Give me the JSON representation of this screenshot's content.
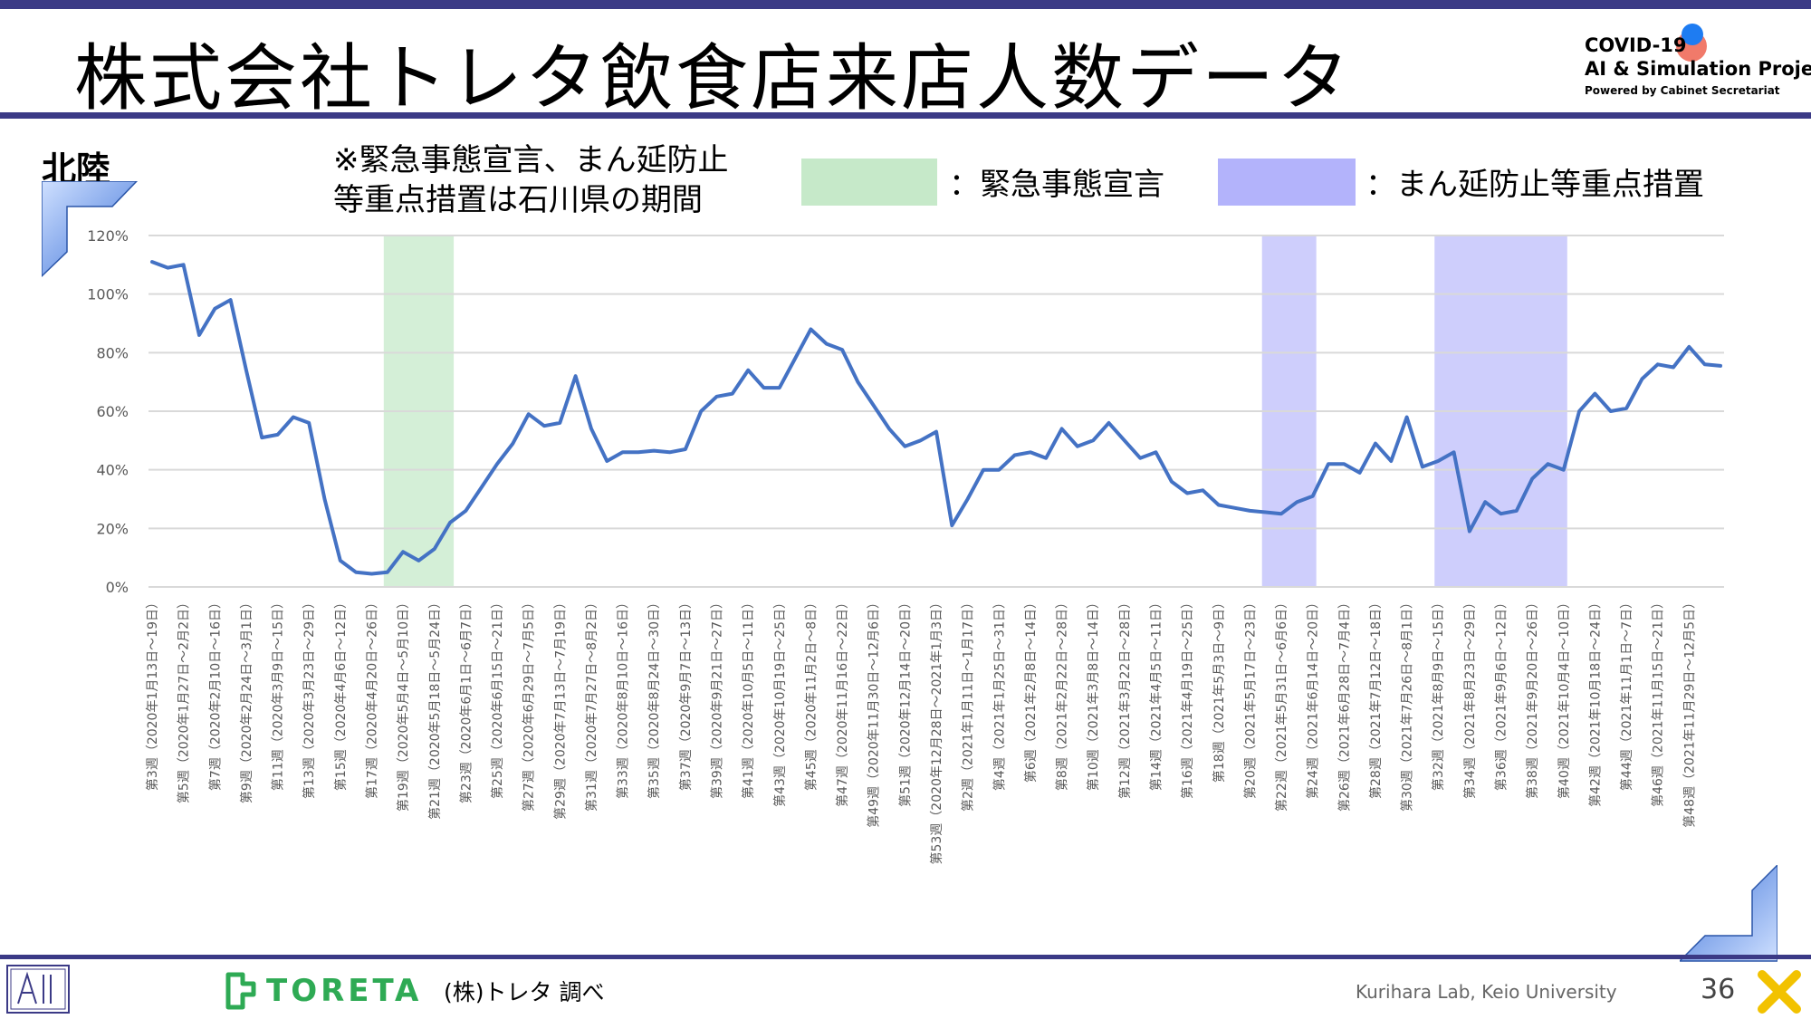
{
  "header": {
    "title": "株式会社トレタ飲食店来店人数データ",
    "logo_line1": "COVID-19",
    "logo_line2": "AI & Simulation Project",
    "logo_line3": "Powered by Cabinet Secretariat"
  },
  "region_label": "北陸",
  "note_lines": [
    "※緊急事態宣言、まん延防止",
    "等重点措置は石川県の期間"
  ],
  "legend": [
    {
      "label": "：緊急事態宣言",
      "color": "#c6e9c9"
    },
    {
      "label": "：まん延防止等重点措置",
      "color": "#b3b3fb"
    }
  ],
  "footer": {
    "brand": "TORETA",
    "source": "(株)トレタ 調べ",
    "lab": "Kurihara Lab, Keio University",
    "page": "36"
  },
  "colors": {
    "accent": "#3b3a86",
    "line": "#4472c4",
    "grid": "#d9d9d9",
    "brand_green": "#2eaa54"
  },
  "chart_data": {
    "type": "line",
    "title": "",
    "xlabel": "",
    "ylabel": "",
    "ylim": [
      0,
      120
    ],
    "yticks": [
      "0%",
      "20%",
      "40%",
      "60%",
      "80%",
      "100%",
      "120%"
    ],
    "grid": true,
    "x_labels": [
      "第3週（2020年1月13日～19日）",
      "第5週（2020年1月27日～2月2日）",
      "第7週（2020年2月10日～16日）",
      "第9週（2020年2月24日～3月1日）",
      "第11週（2020年3月9日～15日）",
      "第13週（2020年3月23日～29日）",
      "第15週（2020年4月6日～12日）",
      "第17週（2020年4月20日～26日）",
      "第19週（2020年5月4日～5月10日）",
      "第21週（2020年5月18日～5月24日）",
      "第23週（2020年6月1日～6月7日）",
      "第25週（2020年6月15日～21日）",
      "第27週（2020年6月29日～7月5日）",
      "第29週（2020年7月13日～7月19日）",
      "第31週（2020年7月27日～8月2日）",
      "第33週（2020年8月10日～16日）",
      "第35週（2020年8月24日～30日）",
      "第37週（2020年9月7日～13日）",
      "第39週（2020年9月21日～27日）",
      "第41週（2020年10月5日～11日）",
      "第43週（2020年10月19日～25日）",
      "第45週（2020年11月2日～8日）",
      "第47週（2020年11月16日～22日）",
      "第49週（2020年11月30日～12月6日）",
      "第51週（2020年12月14日～20日）",
      "第53週（2020年12月28日～2021年1月3日）",
      "第2週（2021年1月11日～1月17日）",
      "第4週（2021年1月25日～31日）",
      "第6週（2021年2月8日～14日）",
      "第8週（2021年2月22日～28日）",
      "第10週（2021年3月8日～14日）",
      "第12週（2021年3月22日～28日）",
      "第14週（2021年4月5日～11日）",
      "第16週（2021年4月19日～25日）",
      "第18週（2021年5月3日～9日）",
      "第20週（2021年5月17日～23日）",
      "第22週（2021年5月31日～6月6日）",
      "第24週（2021年6月14日～20日）",
      "第26週（2021年6月28日～7月4日）",
      "第28週（2021年7月12日～18日）",
      "第30週（2021年7月26日～8月1日）",
      "第32週（2021年8月9日～15日）",
      "第34週（2021年8月23日～29日）",
      "第36週（2021年9月6日～12日）",
      "第38週（2021年9月20日～26日）",
      "第40週（2021年10月4日～10日）",
      "第42週（2021年10月18日～24日）",
      "第44週（2021年11月1日～7日）",
      "第46週（2021年11月15日～21日）",
      "第48週（2021年11月29日～12月5日）"
    ],
    "series": [
      {
        "values": [
          111,
          109,
          110,
          86,
          95,
          98,
          74,
          51,
          52,
          58,
          56,
          30,
          9,
          5,
          4.5,
          5,
          12,
          9,
          13,
          22,
          26,
          34,
          42,
          49,
          59,
          55,
          56,
          72,
          54,
          43,
          46,
          46,
          46.5,
          46,
          47,
          60,
          65,
          66,
          74,
          68,
          68,
          78,
          88,
          83,
          81,
          70,
          62,
          54,
          48,
          50,
          53,
          21,
          30,
          40,
          40,
          45,
          46,
          44,
          54,
          48,
          50,
          56,
          50,
          44,
          46,
          36,
          32,
          33,
          28,
          27,
          26,
          25.5,
          25,
          29,
          31,
          42,
          42,
          39,
          49,
          43,
          58,
          41,
          43,
          46,
          19,
          29,
          25,
          26,
          37,
          42,
          40,
          60,
          66,
          60,
          61,
          71,
          76,
          75,
          82,
          76,
          75.5
        ]
      }
    ],
    "shaded_periods": [
      {
        "type": "緊急事態宣言",
        "start_week": 15,
        "end_week": 19
      },
      {
        "type": "まん延防止等重点措置",
        "start_week": 71,
        "end_week": 74
      },
      {
        "type": "まん延防止等重点措置",
        "start_week": 82,
        "end_week": 90
      }
    ]
  }
}
